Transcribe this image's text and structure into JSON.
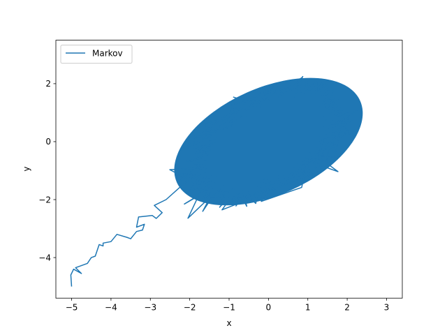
{
  "chart_data": {
    "type": "line",
    "title": "",
    "xlabel": "x",
    "ylabel": "y",
    "xlim": [
      -5.4,
      3.4
    ],
    "ylim": [
      -5.4,
      3.5
    ],
    "xticks": [
      -5,
      -4,
      -3,
      -2,
      -1,
      0,
      1,
      2,
      3
    ],
    "yticks": [
      -4,
      -2,
      0,
      2
    ],
    "xtick_labels": [
      "−5",
      "−4",
      "−3",
      "−2",
      "−1",
      "0",
      "1",
      "2",
      "3"
    ],
    "ytick_labels": [
      "−4",
      "−2",
      "0",
      "2"
    ],
    "grid": false,
    "legend": {
      "position": "top-left",
      "entries": [
        "Markov"
      ]
    },
    "series": [
      {
        "name": "Markov",
        "color": "#1f77b4",
        "description_of_shape": "random-walk trace starting at (-5,-5), climbing to the origin region, then densely filling a tilted ellipse of roughly x in [-3,3], y in [-3,3]",
        "path": [
          [
            -5.0,
            -5.0
          ],
          [
            -5.02,
            -4.6
          ],
          [
            -4.95,
            -4.4
          ],
          [
            -4.75,
            -4.55
          ],
          [
            -4.9,
            -4.35
          ],
          [
            -4.6,
            -4.2
          ],
          [
            -4.5,
            -4.0
          ],
          [
            -4.4,
            -3.95
          ],
          [
            -4.3,
            -3.55
          ],
          [
            -4.2,
            -3.6
          ],
          [
            -4.2,
            -3.5
          ],
          [
            -4.0,
            -3.45
          ],
          [
            -3.85,
            -3.2
          ],
          [
            -3.6,
            -3.3
          ],
          [
            -3.5,
            -3.35
          ],
          [
            -3.35,
            -3.1
          ],
          [
            -3.2,
            -3.05
          ],
          [
            -3.15,
            -2.85
          ],
          [
            -3.35,
            -2.95
          ],
          [
            -3.3,
            -2.6
          ],
          [
            -2.95,
            -2.55
          ],
          [
            -2.85,
            -2.65
          ],
          [
            -2.7,
            -2.45
          ],
          [
            -2.9,
            -2.2
          ],
          [
            -2.6,
            -2.0
          ]
        ],
        "cloud": {
          "center": [
            0.0,
            0.0
          ],
          "x_range": [
            -3.0,
            3.0
          ],
          "y_range": [
            -3.0,
            3.3
          ],
          "correlation": 0.5
        }
      }
    ]
  }
}
